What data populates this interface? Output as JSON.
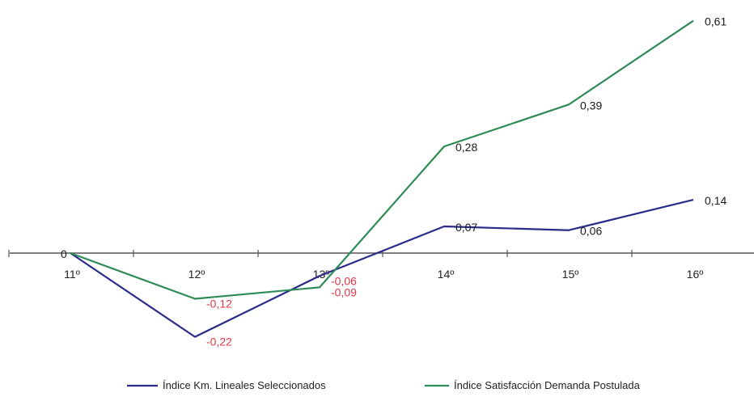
{
  "chart_data": {
    "type": "line",
    "categories": [
      "11º",
      "12º",
      "13º",
      "14º",
      "15º",
      "16º"
    ],
    "ylim": [
      -0.3,
      0.65
    ],
    "grid": false,
    "legend_position": "bottom",
    "series": [
      {
        "name": "Índice Km. Lineales  Seleccionados",
        "color": "#2b2b8c",
        "values": [
          0,
          -0.22,
          -0.06,
          0.07,
          0.06,
          0.14
        ],
        "labels": [
          "0",
          "-0,22",
          "-0,06",
          "0,07",
          "0,06",
          "0,14"
        ]
      },
      {
        "name": "Índice Satisfacción Demanda Postulada",
        "color": "#2e8b57",
        "values": [
          0,
          -0.12,
          -0.09,
          0.28,
          0.39,
          0.61
        ],
        "labels": [
          "0",
          "-0,12",
          "-0,09",
          "0,28",
          "0,39",
          "0,61"
        ]
      }
    ],
    "label_colors": {
      "positive": "#1a1a1a",
      "negative": "#e03a4a"
    }
  }
}
